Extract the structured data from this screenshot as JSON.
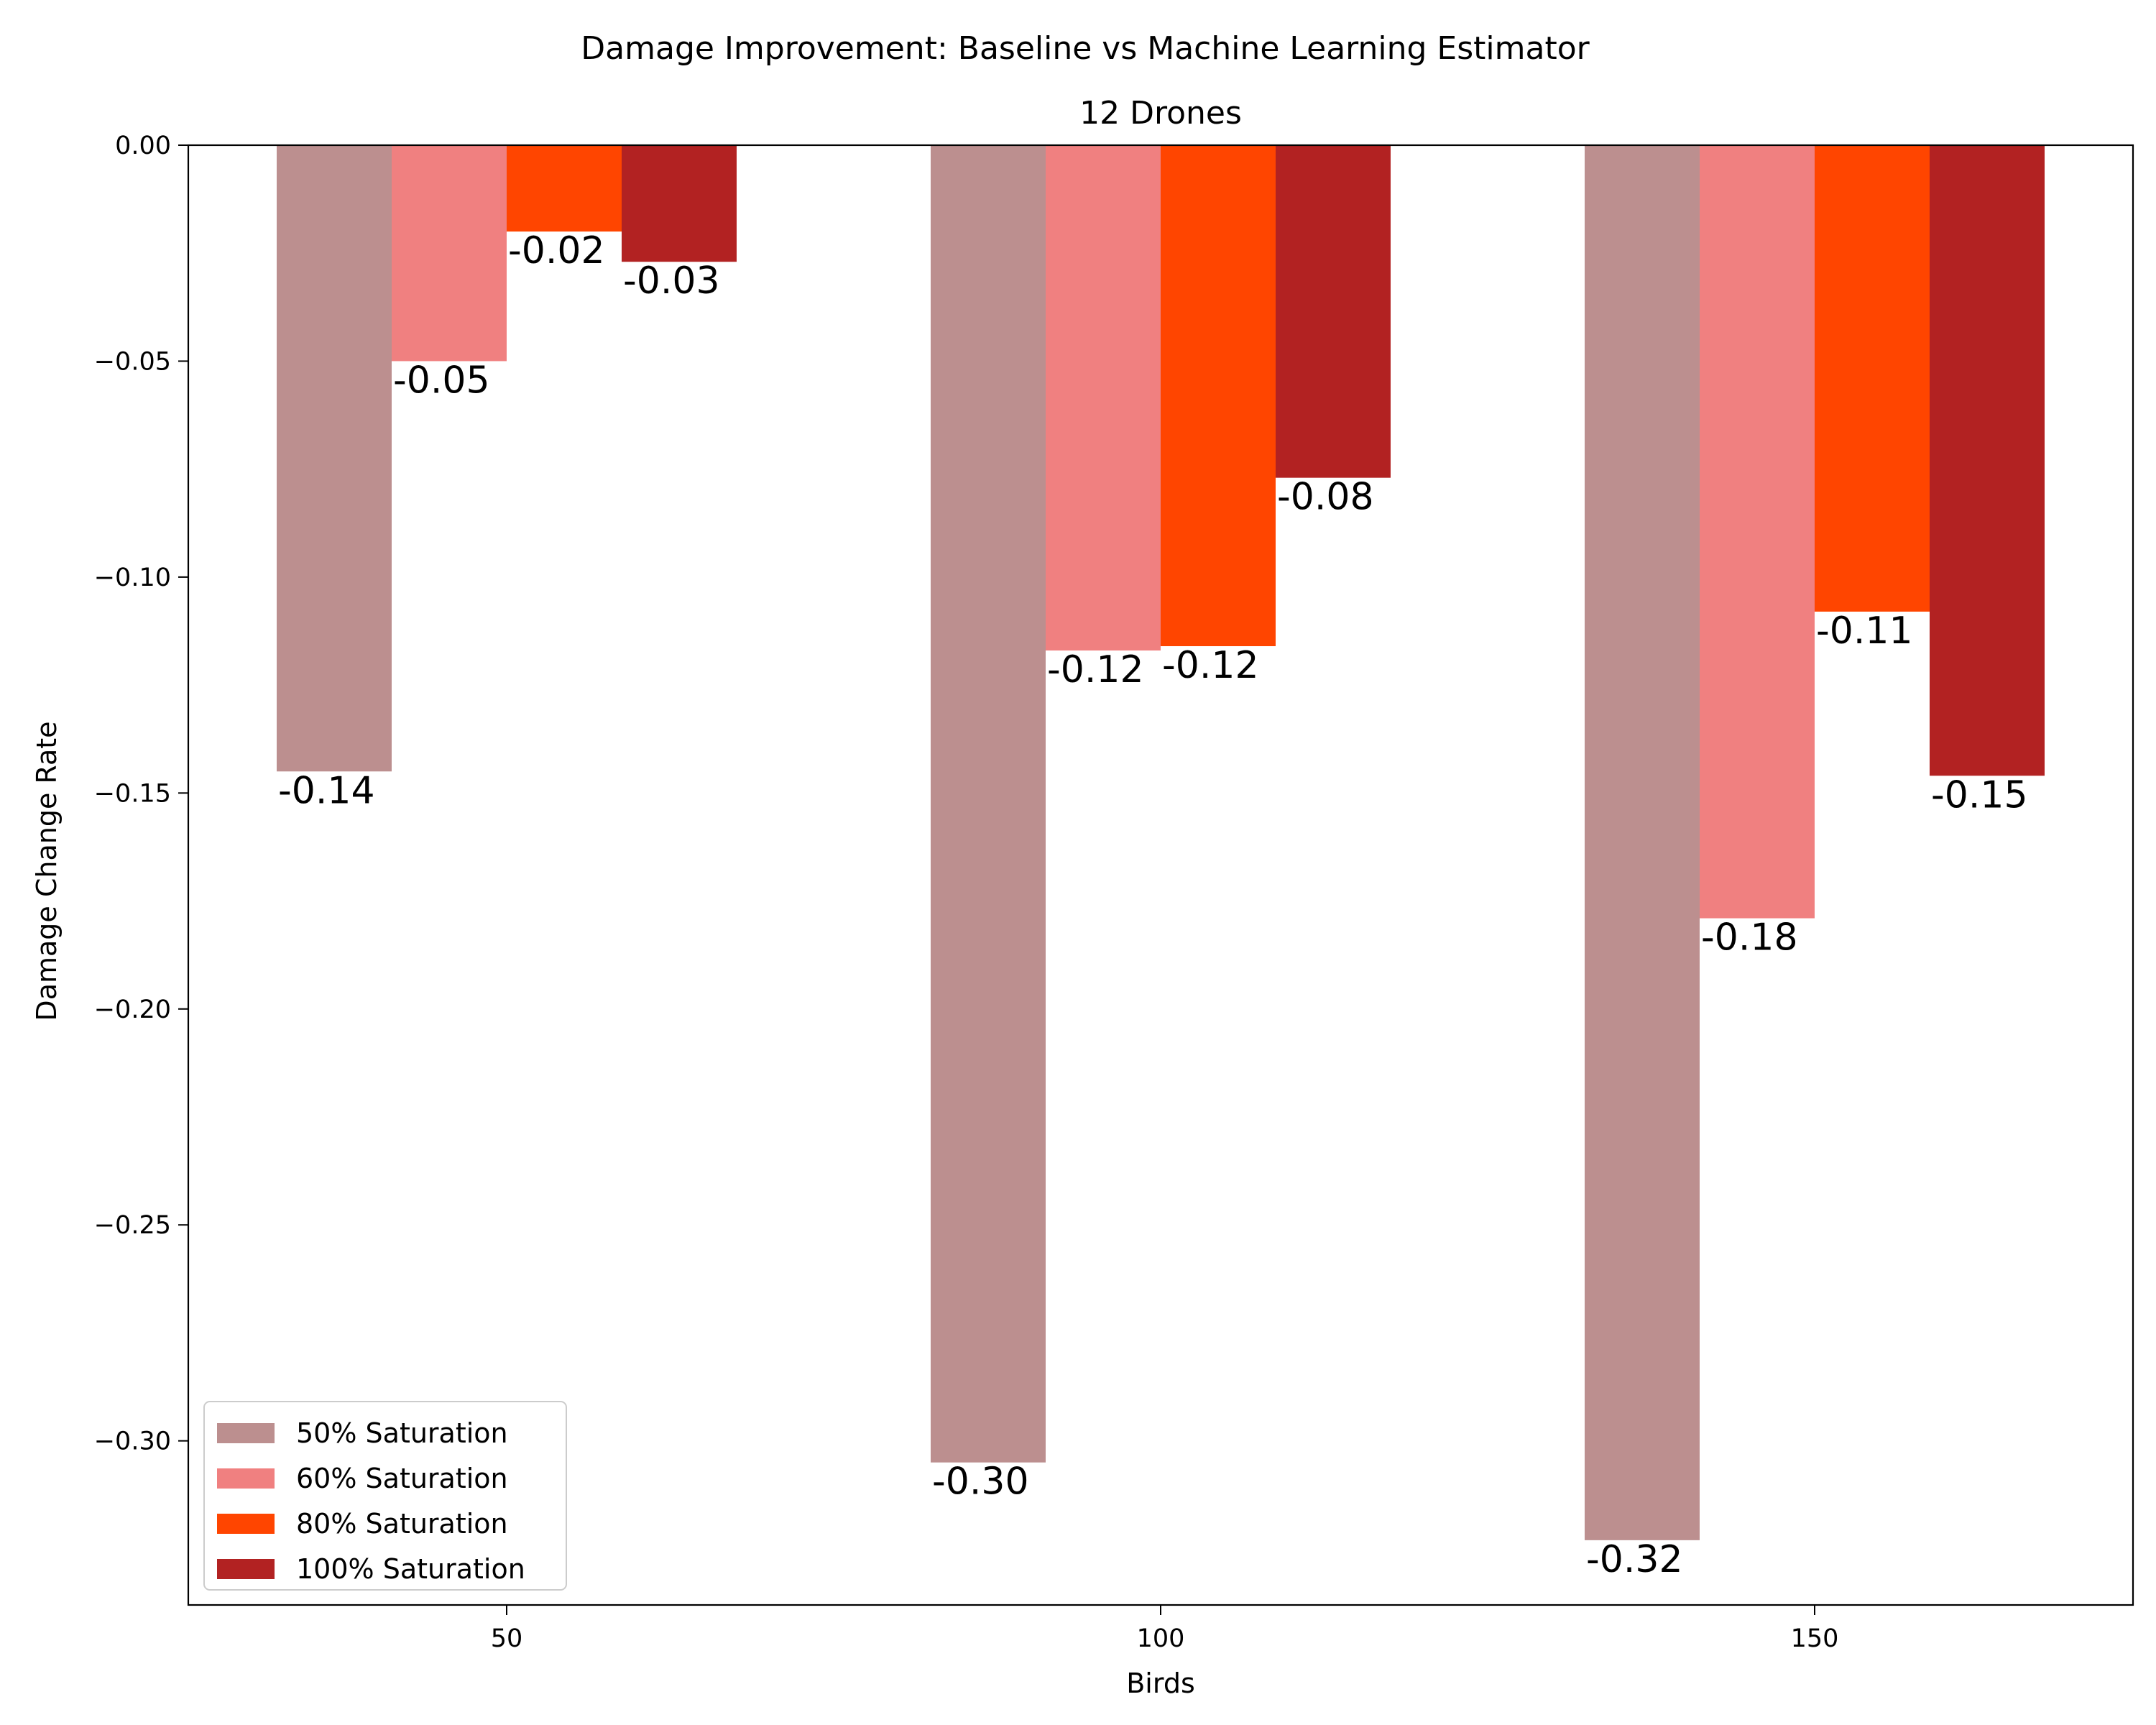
{
  "chart_data": {
    "type": "bar",
    "suptitle": "Damage Improvement: Baseline vs Machine Learning Estimator",
    "title": "12 Drones",
    "xlabel": "Birds",
    "ylabel": "Damage Change Rate",
    "categories": [
      "50",
      "100",
      "150"
    ],
    "ylim": [
      -0.338,
      0.0
    ],
    "yticks": [
      0.0,
      -0.05,
      -0.1,
      -0.15,
      -0.2,
      -0.25,
      -0.3
    ],
    "ytick_labels": [
      "0.00",
      "−0.05",
      "−0.10",
      "−0.15",
      "−0.20",
      "−0.25",
      "−0.30"
    ],
    "grid": false,
    "legend_position": "lower-left",
    "series": [
      {
        "name": "50% Saturation",
        "color": "#bc8f8f",
        "values": [
          -0.145,
          -0.305,
          -0.323
        ],
        "labels": [
          "-0.14",
          "-0.30",
          "-0.32"
        ]
      },
      {
        "name": "60% Saturation",
        "color": "#f08080",
        "values": [
          -0.05,
          -0.117,
          -0.179
        ],
        "labels": [
          "-0.05",
          "-0.12",
          "-0.18"
        ]
      },
      {
        "name": "80% Saturation",
        "color": "#ff4500",
        "values": [
          -0.02,
          -0.116,
          -0.108
        ],
        "labels": [
          "-0.02",
          "-0.12",
          "-0.11"
        ]
      },
      {
        "name": "100% Saturation",
        "color": "#b22222",
        "values": [
          -0.027,
          -0.077,
          -0.146
        ],
        "labels": [
          "-0.03",
          "-0.08",
          "-0.15"
        ]
      }
    ]
  }
}
